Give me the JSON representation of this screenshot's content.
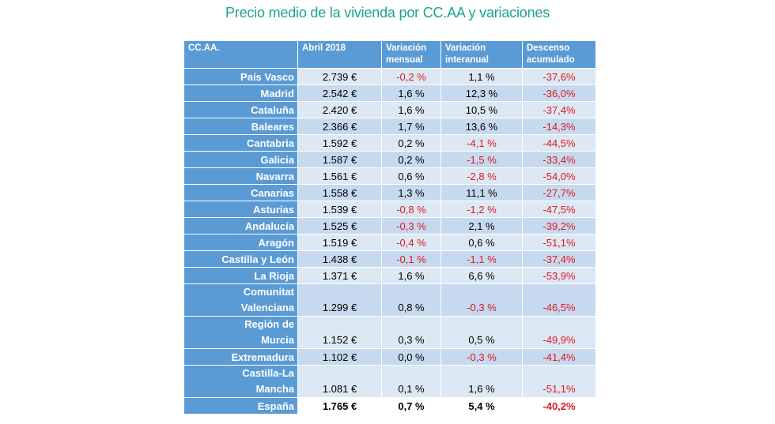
{
  "title": "Precio medio de la vivienda por CC.AA y variaciones",
  "colors": {
    "title": "#1aa58a",
    "header": "#5b9bd5",
    "negative": "#e0191c",
    "row_light": "#dde8f5",
    "row_dark": "#c6d9ef"
  },
  "chart_data": {
    "type": "table",
    "title": "Precio medio de la vivienda por CC.AA y variaciones",
    "columns": [
      "CC.AA.",
      "Abril 2018",
      "Variación mensual",
      "Variación interanual",
      "Descenso acumulado"
    ],
    "rows": [
      {
        "region": [
          "País Vasco"
        ],
        "price": "2.739 €",
        "monthly": "-0,2 %",
        "yearly": "1,1 %",
        "cumulative": "-37,6%"
      },
      {
        "region": [
          "Madrid"
        ],
        "price": "2.542 €",
        "monthly": "1,6 %",
        "yearly": "12,3 %",
        "cumulative": "-36,0%"
      },
      {
        "region": [
          "Cataluña"
        ],
        "price": "2.420 €",
        "monthly": "1,6 %",
        "yearly": "10,5 %",
        "cumulative": "-37,4%"
      },
      {
        "region": [
          "Baleares"
        ],
        "price": "2.366 €",
        "monthly": "1,7 %",
        "yearly": "13,6 %",
        "cumulative": "-14,3%"
      },
      {
        "region": [
          "Cantabria"
        ],
        "price": "1.592 €",
        "monthly": "0,2 %",
        "yearly": "-4,1 %",
        "cumulative": "-44,5%"
      },
      {
        "region": [
          "Galicia"
        ],
        "price": "1.587 €",
        "monthly": "0,2 %",
        "yearly": "-1,5 %",
        "cumulative": "-33,4%"
      },
      {
        "region": [
          "Navarra"
        ],
        "price": "1.561 €",
        "monthly": "0,6 %",
        "yearly": "-2,8 %",
        "cumulative": "-54,0%"
      },
      {
        "region": [
          "Canarias"
        ],
        "price": "1.558 €",
        "monthly": "1,3 %",
        "yearly": "11,1 %",
        "cumulative": "-27,7%"
      },
      {
        "region": [
          "Asturias"
        ],
        "price": "1.539 €",
        "monthly": "-0,8 %",
        "yearly": "-1,2 %",
        "cumulative": "-47,5%"
      },
      {
        "region": [
          "Andalucía"
        ],
        "price": "1.525 €",
        "monthly": "-0,3 %",
        "yearly": "2,1 %",
        "cumulative": "-39,2%"
      },
      {
        "region": [
          "Aragón"
        ],
        "price": "1.519 €",
        "monthly": "-0,4 %",
        "yearly": "0,6 %",
        "cumulative": "-51,1%"
      },
      {
        "region": [
          "Castilla y León"
        ],
        "price": "1.438 €",
        "monthly": "-0,1 %",
        "yearly": "-1,1 %",
        "cumulative": "-37,4%"
      },
      {
        "region": [
          "La Rioja"
        ],
        "price": "1.371 €",
        "monthly": "1,6 %",
        "yearly": "6,6 %",
        "cumulative": "-53,9%"
      },
      {
        "region": [
          "Comunitat",
          "Valenciana"
        ],
        "price": "1.299 €",
        "monthly": "0,8 %",
        "yearly": "-0,3 %",
        "cumulative": "-46,5%"
      },
      {
        "region": [
          "Región de",
          "Murcia"
        ],
        "price": "1.152 €",
        "monthly": "0,3 %",
        "yearly": "0,5 %",
        "cumulative": "-49,9%"
      },
      {
        "region": [
          "Extremadura"
        ],
        "price": "1.102 €",
        "monthly": "0,0 %",
        "yearly": "-0,3 %",
        "cumulative": "-41,4%"
      },
      {
        "region": [
          "Castilla-La",
          "Mancha"
        ],
        "price": "1.081 €",
        "monthly": "0,1 %",
        "yearly": "1,6 %",
        "cumulative": "-51,1%"
      },
      {
        "region": [
          "España"
        ],
        "price": "1.765 €",
        "monthly": "0,7 %",
        "yearly": "5,4 %",
        "cumulative": "-40,2%",
        "total": true
      }
    ]
  }
}
